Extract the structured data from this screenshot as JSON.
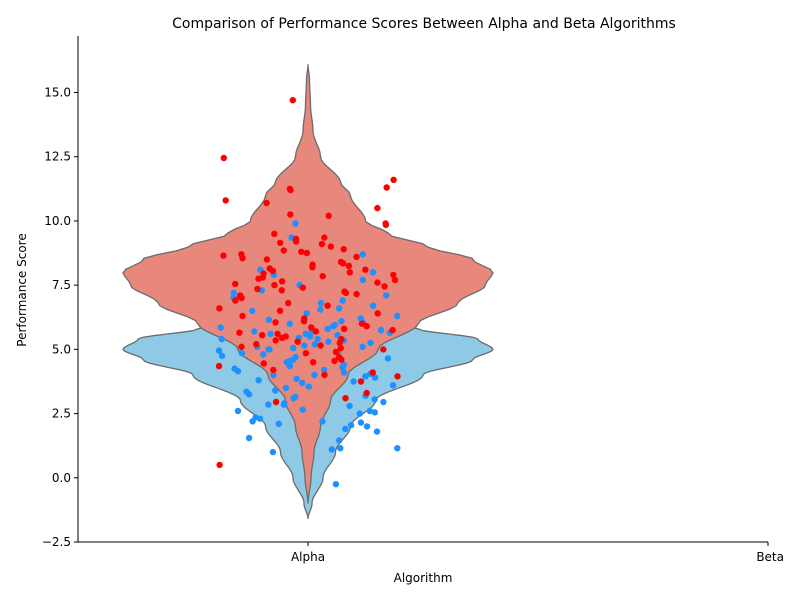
{
  "chart_data": {
    "type": "violin",
    "title": "Comparison of Performance Scores Between Alpha and Beta Algorithms",
    "xlabel": "Algorithm",
    "ylabel": "Performance Score",
    "categories": [
      "Alpha",
      "Beta"
    ],
    "ylim": [
      -2.5,
      17.2
    ],
    "yticks": [
      -2.5,
      0.0,
      2.5,
      5.0,
      7.5,
      10.0,
      12.5,
      15.0
    ],
    "ytick_labels": [
      "−2.5",
      "0.0",
      "2.5",
      "5.0",
      "7.5",
      "10.0",
      "12.5",
      "15.0"
    ],
    "grid": false,
    "series": [
      {
        "color": "#8ecae6",
        "edge": "#6b6b6b",
        "point_color": "#1e90ff",
        "violin_range": [
          -1.6,
          6.4
        ],
        "profile": [
          [
            -1.6,
            0.0
          ],
          [
            -1.0,
            0.08
          ],
          [
            0.0,
            0.3
          ],
          [
            1.0,
            0.55
          ],
          [
            2.0,
            0.85
          ],
          [
            3.0,
            1.35
          ],
          [
            4.0,
            2.3
          ],
          [
            4.6,
            3.3
          ],
          [
            5.0,
            3.7
          ],
          [
            5.4,
            3.4
          ],
          [
            5.8,
            2.2
          ],
          [
            6.1,
            1.0
          ],
          [
            6.4,
            0.0
          ]
        ],
        "points": [
          -0.25,
          1.0,
          1.1,
          1.15,
          1.15,
          1.45,
          1.55,
          1.8,
          1.9,
          2.0,
          2.05,
          2.1,
          2.15,
          2.2,
          2.2,
          2.3,
          2.35,
          2.5,
          2.55,
          2.6,
          2.6,
          2.65,
          2.8,
          2.85,
          2.85,
          2.9,
          2.95,
          3.05,
          3.1,
          3.15,
          3.2,
          3.25,
          3.35,
          3.4,
          3.5,
          3.55,
          3.6,
          3.7,
          3.75,
          3.8,
          3.85,
          3.9,
          3.95,
          4.0,
          4.0,
          4.05,
          4.1,
          4.15,
          4.2,
          4.25,
          4.3,
          4.35,
          4.4,
          4.45,
          4.5,
          4.55,
          4.6,
          4.65,
          4.7,
          4.75,
          4.8,
          4.85,
          4.9,
          4.95,
          5.0,
          5.0,
          5.05,
          5.1,
          5.1,
          5.15,
          5.2,
          5.25,
          5.3,
          5.35,
          5.4,
          5.4,
          5.45,
          5.5,
          5.55,
          5.6,
          5.6,
          5.65,
          5.7,
          5.7,
          5.75,
          5.8,
          5.85,
          5.9,
          5.95,
          6.0,
          6.05,
          6.1,
          6.15,
          6.2,
          6.3,
          6.4,
          6.5,
          6.55,
          6.6,
          6.7,
          6.8,
          6.9,
          7.0,
          7.1,
          7.2,
          7.3,
          7.5,
          7.7,
          7.9,
          8.0,
          8.1,
          8.7,
          9.35,
          9.9
        ]
      },
      {
        "color": "#e8877c",
        "edge": "#6b6b6b",
        "point_color": "#ff0000",
        "violin_range": [
          -1.0,
          16.1
        ],
        "profile": [
          [
            -1.0,
            0.0
          ],
          [
            0.0,
            0.06
          ],
          [
            1.0,
            0.12
          ],
          [
            2.0,
            0.25
          ],
          [
            3.0,
            0.45
          ],
          [
            4.0,
            0.8
          ],
          [
            5.0,
            1.4
          ],
          [
            6.0,
            2.2
          ],
          [
            6.8,
            3.0
          ],
          [
            7.5,
            3.55
          ],
          [
            8.0,
            3.7
          ],
          [
            8.5,
            3.3
          ],
          [
            9.0,
            2.4
          ],
          [
            9.5,
            1.6
          ],
          [
            10.0,
            1.15
          ],
          [
            11.0,
            0.85
          ],
          [
            11.5,
            0.65
          ],
          [
            12.5,
            0.25
          ],
          [
            13.5,
            0.1
          ],
          [
            14.5,
            0.05
          ],
          [
            15.5,
            0.03
          ],
          [
            16.1,
            0.0
          ]
        ],
        "points": [
          0.5,
          2.95,
          3.1,
          3.3,
          3.75,
          3.95,
          4.0,
          4.1,
          4.2,
          4.35,
          4.45,
          4.5,
          4.55,
          4.6,
          4.7,
          4.85,
          4.9,
          5.0,
          5.05,
          5.1,
          5.15,
          5.2,
          5.25,
          5.3,
          5.35,
          5.4,
          5.45,
          5.5,
          5.55,
          5.6,
          5.65,
          5.7,
          5.75,
          5.8,
          5.85,
          5.9,
          6.0,
          6.05,
          6.1,
          6.2,
          6.3,
          6.4,
          6.5,
          6.6,
          6.7,
          6.8,
          6.9,
          7.0,
          7.05,
          7.1,
          7.15,
          7.2,
          7.25,
          7.3,
          7.35,
          7.4,
          7.45,
          7.5,
          7.55,
          7.6,
          7.65,
          7.7,
          7.75,
          7.8,
          7.85,
          7.9,
          7.95,
          8.0,
          8.05,
          8.1,
          8.15,
          8.2,
          8.25,
          8.3,
          8.35,
          8.4,
          8.5,
          8.55,
          8.6,
          8.65,
          8.7,
          8.75,
          8.8,
          8.85,
          8.9,
          9.0,
          9.1,
          9.15,
          9.2,
          9.3,
          9.35,
          9.5,
          9.85,
          9.9,
          10.2,
          10.25,
          10.5,
          10.7,
          10.8,
          11.2,
          11.25,
          11.3,
          11.6,
          12.45,
          14.7
        ]
      }
    ]
  }
}
